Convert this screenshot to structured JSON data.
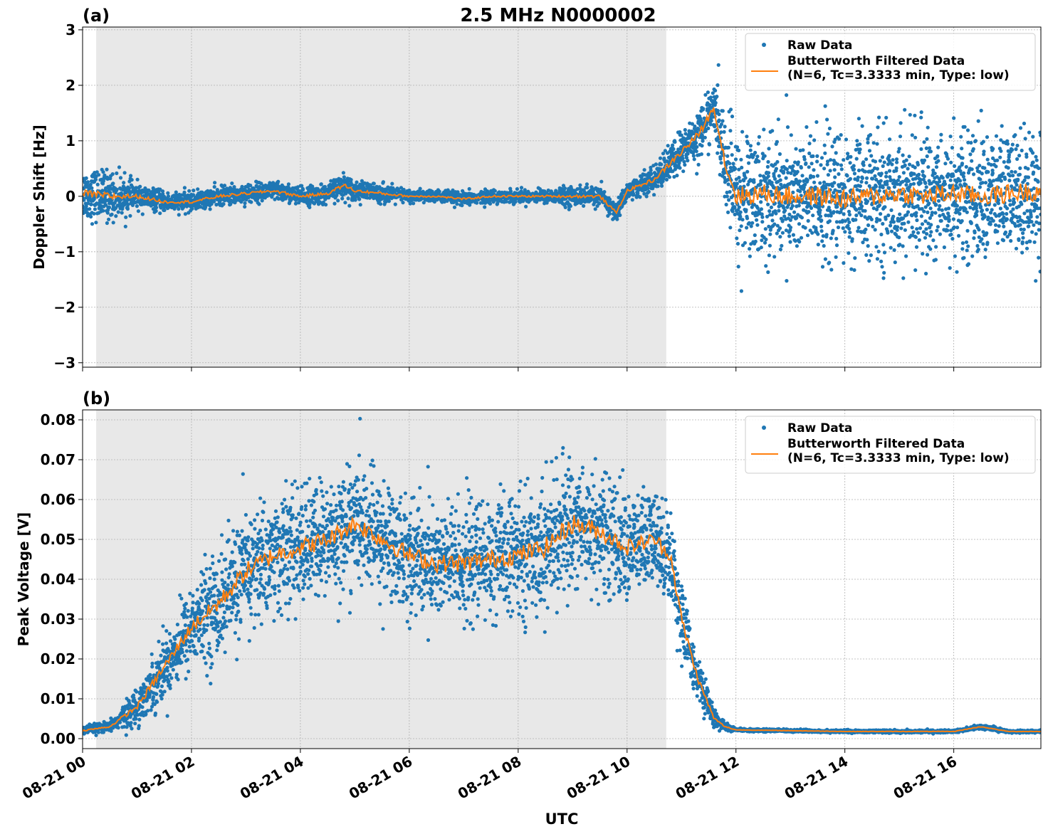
{
  "figure": {
    "title": "2.5 MHz N0000002",
    "xlabel": "UTC"
  },
  "colors": {
    "raw": "#1f77b4",
    "filtered": "#ff7f0e",
    "shade": "#e8e8e8",
    "grid": "#b0b0b0"
  },
  "legend": {
    "raw_label": "Raw Data",
    "filtered_line1": "Butterworth Filtered Data",
    "filtered_line2": "(N=6, Tc=3.3333 min, Type: low)"
  },
  "chart_data": [
    {
      "id": "a",
      "panel_label": "(a)",
      "type": "scatter",
      "ylabel": "Doppler Shift [Hz]",
      "xlim": [
        0,
        17.6
      ],
      "ylim": [
        -3.08,
        3.05
      ],
      "yticks": [
        -3,
        -2,
        -1,
        0,
        1,
        2,
        3
      ],
      "ytick_labels": [
        "−3",
        "−2",
        "−1",
        "0",
        "1",
        "2",
        "3"
      ],
      "night_shading_hours": [
        0.25,
        10.72
      ],
      "grid": true,
      "legend_position": "upper right",
      "series": [
        {
          "name": "Raw Data",
          "kind": "scatter",
          "x": [
            0,
            0.5,
            1,
            1.5,
            2,
            2.5,
            3,
            3.5,
            4,
            4.5,
            4.8,
            5,
            5.5,
            6,
            6.5,
            7,
            7.5,
            8,
            8.5,
            9,
            9.5,
            9.8,
            10,
            10.5,
            10.8,
            11,
            11.3,
            11.6,
            11.8,
            12,
            12.5,
            13,
            13.5,
            14,
            14.5,
            15,
            15.5,
            16,
            16.5,
            17,
            17.6
          ],
          "y": [
            0.05,
            0.0,
            0.0,
            -0.1,
            -0.1,
            0.0,
            0.05,
            0.1,
            0.0,
            0.05,
            0.2,
            0.1,
            0.05,
            0.0,
            0.0,
            -0.05,
            0.0,
            0.0,
            0.0,
            0.0,
            0.0,
            -0.3,
            0.1,
            0.3,
            0.6,
            0.8,
            1.1,
            1.6,
            0.6,
            0.0,
            0.05,
            0.0,
            0.0,
            -0.05,
            0.0,
            0.05,
            0.0,
            0.05,
            0.0,
            0.05,
            0.1
          ],
          "spread": [
            0.4,
            0.4,
            0.2,
            0.15,
            0.15,
            0.15,
            0.15,
            0.15,
            0.15,
            0.15,
            0.2,
            0.15,
            0.15,
            0.1,
            0.1,
            0.1,
            0.1,
            0.1,
            0.1,
            0.15,
            0.15,
            0.15,
            0.15,
            0.2,
            0.3,
            0.35,
            0.4,
            0.4,
            0.8,
            1.0,
            1.0,
            1.0,
            1.0,
            1.0,
            1.0,
            1.0,
            1.0,
            1.0,
            1.0,
            1.0,
            1.0
          ]
        },
        {
          "name": "Butterworth Filtered Data (N=6, Tc=3.3333 min, Type: low)",
          "kind": "line",
          "x": [
            0,
            0.5,
            1,
            1.5,
            2,
            2.5,
            3,
            3.5,
            4,
            4.5,
            4.8,
            5,
            5.5,
            6,
            6.5,
            7,
            7.5,
            8,
            8.5,
            9,
            9.5,
            9.8,
            10,
            10.5,
            10.8,
            11,
            11.3,
            11.6,
            11.8,
            12,
            12.5,
            13,
            13.5,
            14,
            14.5,
            15,
            15.5,
            16,
            16.5,
            17,
            17.6
          ],
          "y": [
            0.05,
            0.0,
            0.0,
            -0.1,
            -0.1,
            0.0,
            0.05,
            0.1,
            0.0,
            0.05,
            0.2,
            0.1,
            0.05,
            0.0,
            0.0,
            -0.05,
            0.0,
            0.0,
            0.0,
            0.0,
            0.0,
            -0.3,
            0.1,
            0.3,
            0.6,
            0.8,
            1.1,
            1.6,
            0.6,
            0.0,
            0.05,
            0.0,
            0.0,
            -0.05,
            0.0,
            0.05,
            0.0,
            0.05,
            0.0,
            0.05,
            0.1
          ]
        }
      ]
    },
    {
      "id": "b",
      "panel_label": "(b)",
      "type": "scatter",
      "ylabel": "Peak Voltage [V]",
      "xlim": [
        0,
        17.6
      ],
      "ylim": [
        -0.0025,
        0.0825
      ],
      "yticks": [
        0,
        0.01,
        0.02,
        0.03,
        0.04,
        0.05,
        0.06,
        0.07,
        0.08
      ],
      "ytick_labels": [
        "0.00",
        "0.01",
        "0.02",
        "0.03",
        "0.04",
        "0.05",
        "0.06",
        "0.07",
        "0.08"
      ],
      "night_shading_hours": [
        0.25,
        10.72
      ],
      "grid": true,
      "legend_position": "upper right",
      "series": [
        {
          "name": "Raw Data",
          "kind": "scatter",
          "x": [
            0,
            0.5,
            1,
            1.5,
            2,
            2.5,
            3,
            3.5,
            4,
            4.5,
            5,
            5.5,
            6,
            6.5,
            7,
            7.5,
            8,
            8.5,
            9,
            9.5,
            10,
            10.5,
            10.8,
            11,
            11.3,
            11.6,
            11.8,
            12,
            13,
            14,
            15,
            16,
            16.5,
            17,
            17.6
          ],
          "y": [
            0.002,
            0.003,
            0.008,
            0.018,
            0.028,
            0.034,
            0.042,
            0.046,
            0.048,
            0.05,
            0.054,
            0.05,
            0.046,
            0.044,
            0.044,
            0.045,
            0.046,
            0.048,
            0.054,
            0.052,
            0.048,
            0.05,
            0.046,
            0.03,
            0.015,
            0.005,
            0.003,
            0.0022,
            0.002,
            0.0018,
            0.0018,
            0.0018,
            0.003,
            0.0018,
            0.0018
          ],
          "spread": [
            0.001,
            0.001,
            0.004,
            0.007,
            0.009,
            0.012,
            0.013,
            0.013,
            0.013,
            0.013,
            0.013,
            0.013,
            0.013,
            0.013,
            0.013,
            0.013,
            0.013,
            0.014,
            0.014,
            0.013,
            0.012,
            0.011,
            0.01,
            0.008,
            0.005,
            0.002,
            0.001,
            0.0003,
            0.0003,
            0.0003,
            0.0003,
            0.0003,
            0.0005,
            0.0003,
            0.0003
          ]
        },
        {
          "name": "Butterworth Filtered Data (N=6, Tc=3.3333 min, Type: low)",
          "kind": "line",
          "x": [
            0,
            0.5,
            1,
            1.5,
            2,
            2.5,
            3,
            3.5,
            4,
            4.5,
            5,
            5.5,
            6,
            6.5,
            7,
            7.5,
            8,
            8.5,
            9,
            9.5,
            10,
            10.5,
            10.8,
            11,
            11.3,
            11.6,
            11.8,
            12,
            13,
            14,
            15,
            16,
            16.5,
            17,
            17.6
          ],
          "y": [
            0.002,
            0.003,
            0.008,
            0.018,
            0.028,
            0.034,
            0.042,
            0.046,
            0.048,
            0.05,
            0.054,
            0.05,
            0.046,
            0.044,
            0.044,
            0.045,
            0.046,
            0.048,
            0.054,
            0.052,
            0.048,
            0.05,
            0.046,
            0.03,
            0.015,
            0.005,
            0.003,
            0.0022,
            0.002,
            0.0018,
            0.0018,
            0.0018,
            0.003,
            0.0018,
            0.0018
          ]
        }
      ]
    }
  ],
  "xaxis": {
    "ticks": [
      0,
      2,
      4,
      6,
      8,
      10,
      12,
      14,
      16
    ],
    "tick_labels": [
      "08-21 00",
      "08-21 02",
      "08-21 04",
      "08-21 06",
      "08-21 08",
      "08-21 10",
      "08-21 12",
      "08-21 14",
      "08-21 16"
    ]
  }
}
